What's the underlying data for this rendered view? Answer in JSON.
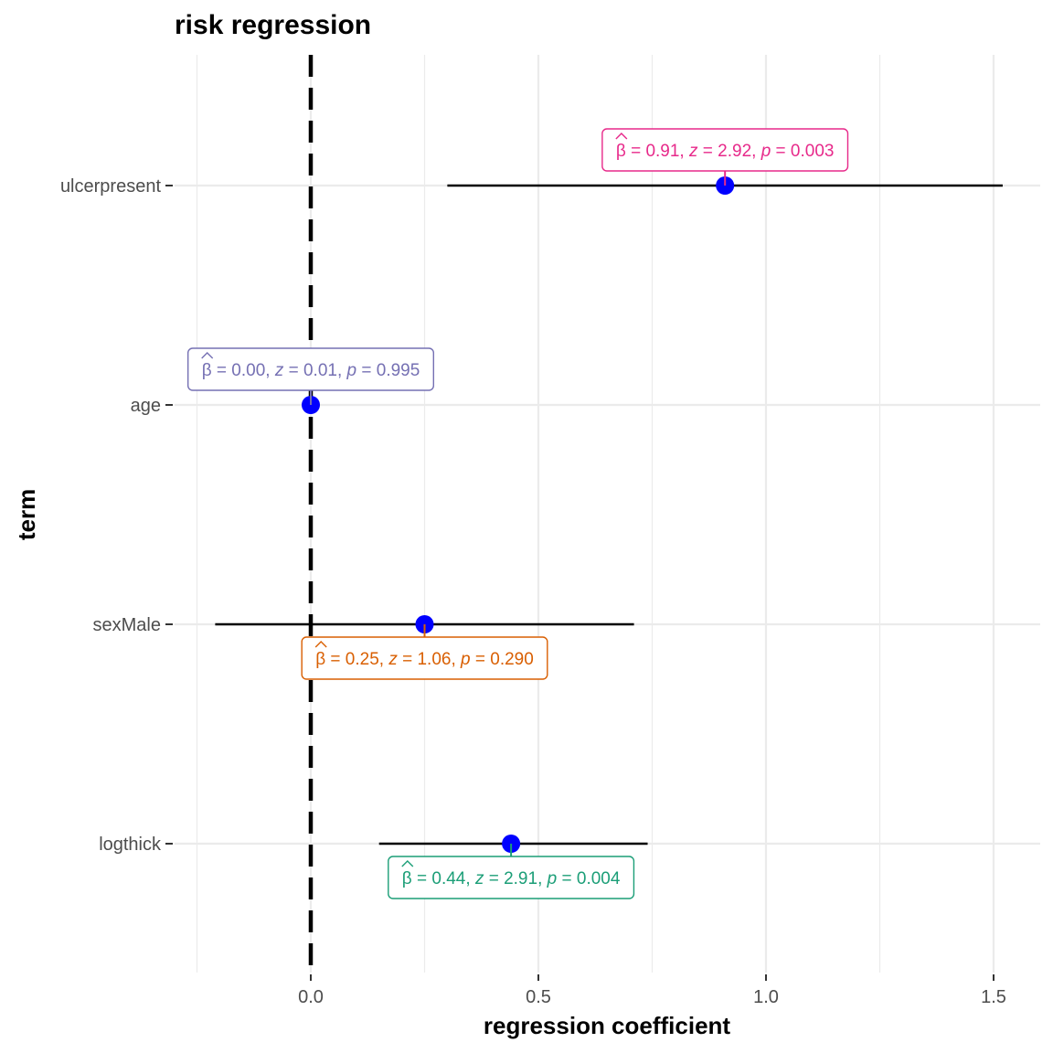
{
  "chart_data": {
    "type": "scatter",
    "title": "risk regression",
    "xlabel": "regression coefficient",
    "ylabel": "term",
    "xlim": [
      -0.25,
      1.6
    ],
    "x_ticks": [
      0.0,
      0.5,
      1.0,
      1.5
    ],
    "x_tick_labels": [
      "0.0",
      "0.5",
      "1.0",
      "1.5"
    ],
    "reference_line": 0,
    "grid": true,
    "point_color": "#0000ff",
    "terms": [
      {
        "term": "ulcerpresent",
        "estimate": 0.91,
        "conf_low": 0.3,
        "conf_high": 1.52,
        "z": "2.92",
        "p": "0.003",
        "beta_label": "0.91",
        "label_color": "#e7298a",
        "label_position": "above"
      },
      {
        "term": "age",
        "estimate": 0.0,
        "conf_low": -0.003,
        "conf_high": 0.003,
        "z": "0.01",
        "p": "0.995",
        "beta_label": "0.00",
        "label_color": "#7570b3",
        "label_position": "above"
      },
      {
        "term": "sexMale",
        "estimate": 0.25,
        "conf_low": -0.21,
        "conf_high": 0.71,
        "z": "1.06",
        "p": "0.290",
        "beta_label": "0.25",
        "label_color": "#d95f02",
        "label_position": "below"
      },
      {
        "term": "logthick",
        "estimate": 0.44,
        "conf_low": 0.15,
        "conf_high": 0.74,
        "z": "2.91",
        "p": "0.004",
        "beta_label": "0.44",
        "label_color": "#1b9e77",
        "label_position": "below"
      }
    ]
  }
}
